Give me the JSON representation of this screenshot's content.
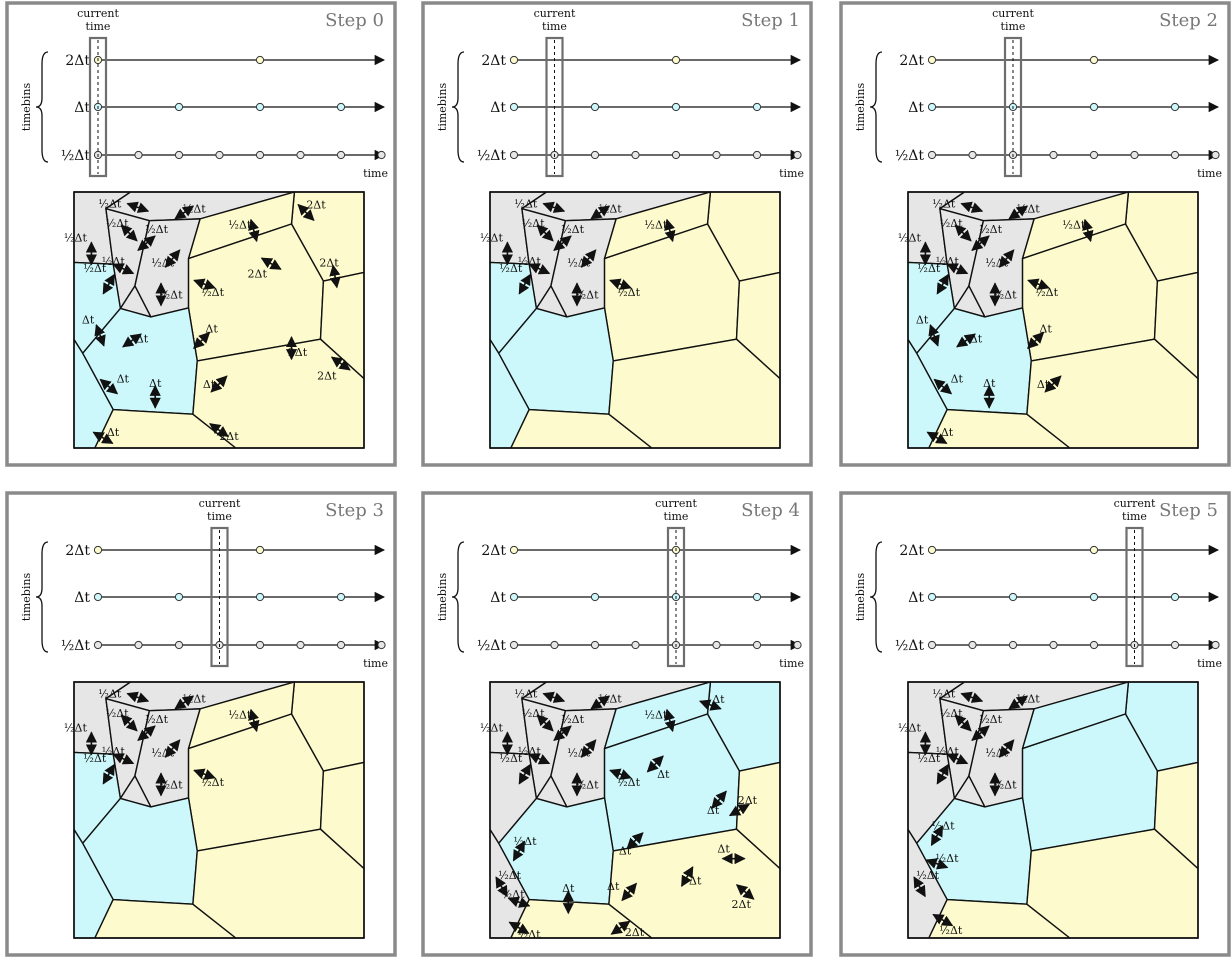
{
  "colors": {
    "half": "#e6e6e6",
    "full": "#cdf8fb",
    "double": "#fdfbcd",
    "empty": "#ffffff",
    "frame": "#8a8a8a"
  },
  "labels": {
    "current_time": [
      "current",
      "time"
    ],
    "time": "time",
    "timebins": "timebins",
    "bins": {
      "double": "2Δt",
      "full": "Δt",
      "half": "½Δt"
    }
  },
  "timeline": {
    "half_points": 8,
    "full_points": 4,
    "double_points": 2
  },
  "panels": [
    {
      "title": "Step 0",
      "current_step": 0,
      "arrow_sets": [
        "half",
        "full",
        "double"
      ]
    },
    {
      "title": "Step 1",
      "current_step": 1,
      "arrow_sets": [
        "half"
      ]
    },
    {
      "title": "Step 2",
      "current_step": 2,
      "arrow_sets": [
        "half",
        "full"
      ]
    },
    {
      "title": "Step 3",
      "current_step": 3,
      "arrow_sets": [
        "half"
      ]
    },
    {
      "title": "Step 4",
      "current_step": 4,
      "arrow_sets": [
        "half",
        "full4"
      ]
    },
    {
      "title": "Step 5",
      "current_step": 5,
      "arrow_sets": [
        "half5"
      ]
    }
  ]
}
